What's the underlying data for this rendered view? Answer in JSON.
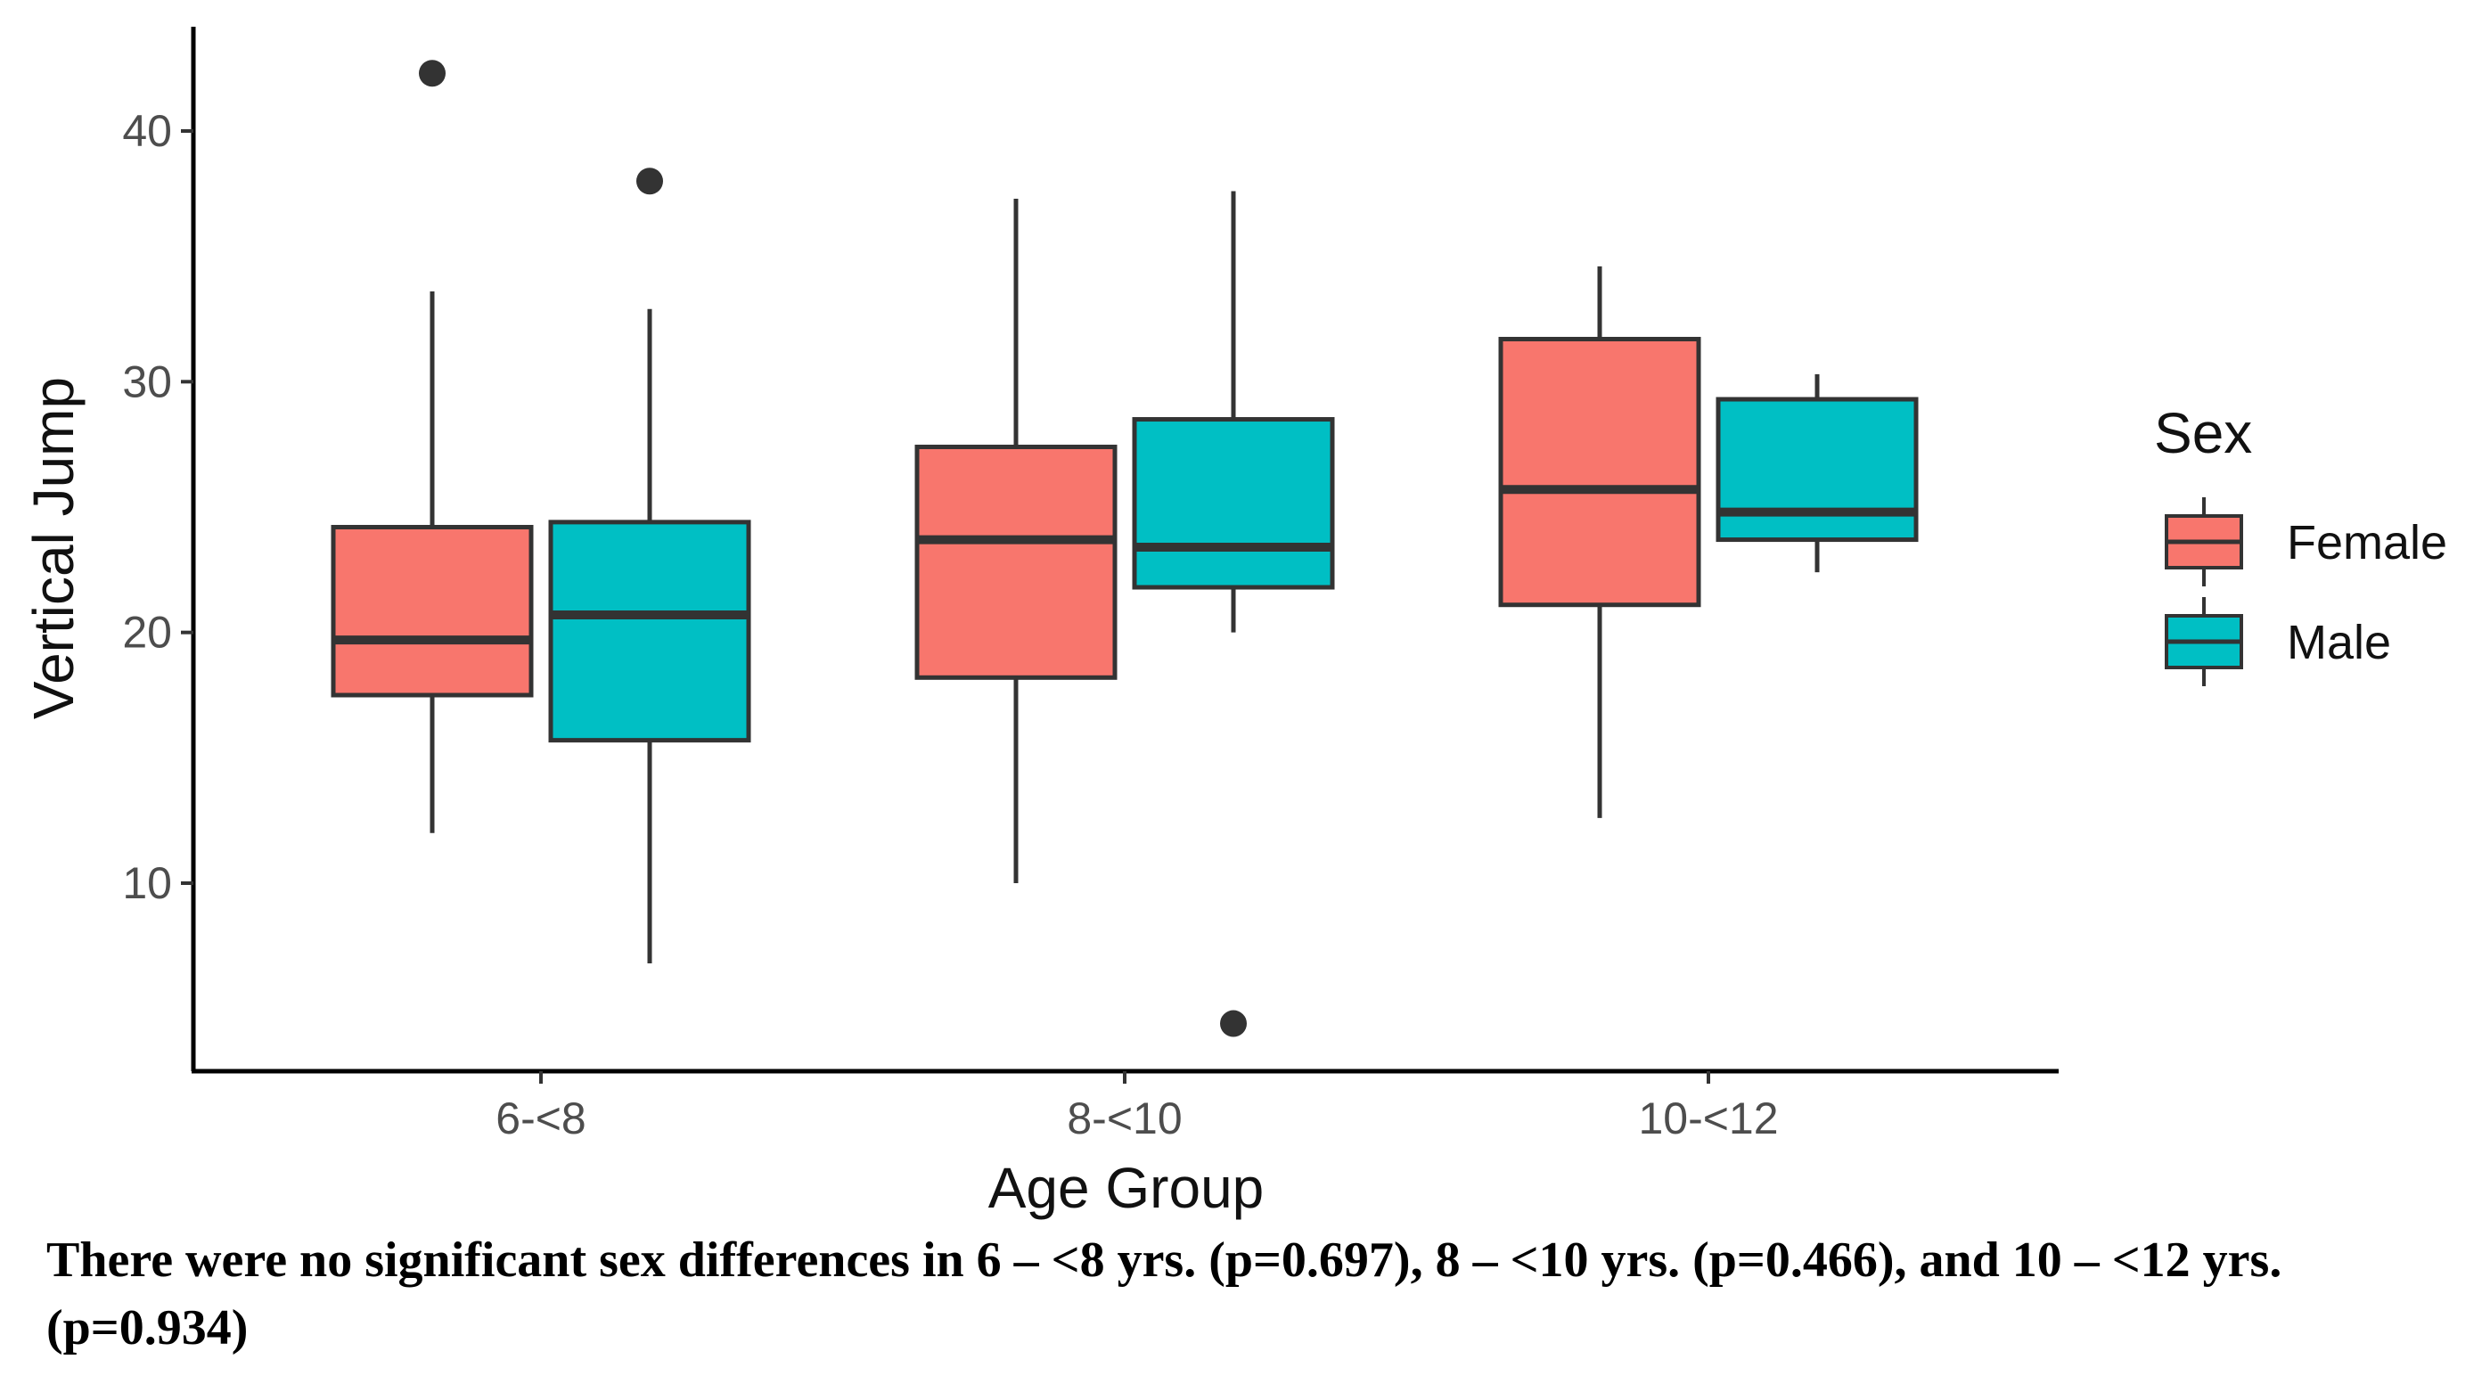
{
  "caption": "There were no significant sex differences in 6 – <8 yrs. (p=0.697), 8 – <10 yrs. (p=0.466), and  10 – <12 yrs. (p=0.934)",
  "chart_data": {
    "type": "boxplot",
    "title": "",
    "xlabel": "Age Group",
    "ylabel": "Vertical Jump",
    "ylim": [
      2,
      44
    ],
    "yticks": [
      10,
      20,
      30,
      40
    ],
    "categories": [
      "6-<8",
      "8-<10",
      "10-<12"
    ],
    "legend": {
      "title": "Sex",
      "position": "right"
    },
    "series": [
      {
        "name": "Female",
        "color": "#F8766D",
        "boxes": [
          {
            "category": "6-<8",
            "whisker_low": 12.0,
            "q1": 17.5,
            "median": 19.7,
            "q3": 24.2,
            "whisker_high": 33.6,
            "outliers": [
              42.3
            ]
          },
          {
            "category": "8-<10",
            "whisker_low": 10.0,
            "q1": 18.2,
            "median": 23.7,
            "q3": 27.4,
            "whisker_high": 37.3,
            "outliers": []
          },
          {
            "category": "10-<12",
            "whisker_low": 12.6,
            "q1": 21.1,
            "median": 25.7,
            "q3": 31.7,
            "whisker_high": 34.6,
            "outliers": []
          }
        ]
      },
      {
        "name": "Male",
        "color": "#00BFC4",
        "boxes": [
          {
            "category": "6-<8",
            "whisker_low": 6.8,
            "q1": 15.7,
            "median": 20.7,
            "q3": 24.4,
            "whisker_high": 32.9,
            "outliers": [
              38.0
            ]
          },
          {
            "category": "8-<10",
            "whisker_low": 20.0,
            "q1": 21.8,
            "median": 23.4,
            "q3": 28.5,
            "whisker_high": 37.6,
            "outliers": [
              4.4
            ]
          },
          {
            "category": "10-<12",
            "whisker_low": 22.4,
            "q1": 23.7,
            "median": 24.8,
            "q3": 29.3,
            "whisker_high": 30.3,
            "outliers": []
          }
        ]
      }
    ]
  }
}
